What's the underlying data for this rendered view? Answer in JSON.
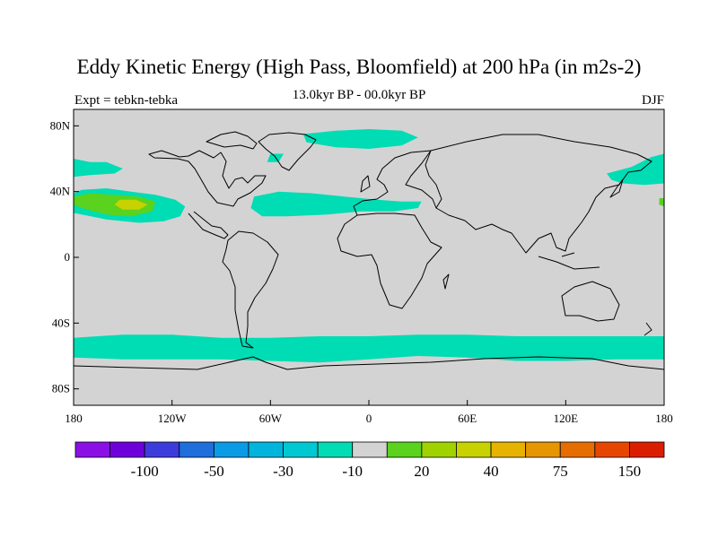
{
  "header": {
    "title": "Eddy Kinetic Energy (High Pass, Bloomfield) at 200 hPa (in m2s-2)",
    "subtitle": "13.0kyr BP - 00.0kyr BP",
    "left_label": "Expt = tebkn-tebka",
    "right_label": "DJF"
  },
  "colors": {
    "land_ocean_base": "#d3d3d3",
    "coast": "#000000",
    "level_minus10": "#00dcb4",
    "level_20": "#5ad21e",
    "level_40": "#c8d200"
  },
  "chart_data": {
    "type": "contour-map",
    "projection": "cylindrical-equidistant",
    "xlim": [
      -180,
      180
    ],
    "ylim": [
      -90,
      90
    ],
    "lat_ticks": [
      {
        "value": 80,
        "label": "80N"
      },
      {
        "value": 40,
        "label": "40N"
      },
      {
        "value": 0,
        "label": "0"
      },
      {
        "value": -40,
        "label": "40S"
      },
      {
        "value": -80,
        "label": "80S"
      }
    ],
    "lon_ticks": [
      {
        "value": -180,
        "label": "180"
      },
      {
        "value": -120,
        "label": "120W"
      },
      {
        "value": -60,
        "label": "60W"
      },
      {
        "value": 0,
        "label": "0"
      },
      {
        "value": 60,
        "label": "60E"
      },
      {
        "value": 120,
        "label": "120E"
      },
      {
        "value": 180,
        "label": "180"
      }
    ],
    "colorbar": {
      "colors": [
        "#8a10e6",
        "#6e00dc",
        "#3c3cdc",
        "#1e6edc",
        "#0a9be6",
        "#00b4dc",
        "#00c8d2",
        "#00dcb4",
        "#d3d3d3",
        "#5ad21e",
        "#a0d200",
        "#c8d200",
        "#e6b400",
        "#e69600",
        "#e66e00",
        "#e64600",
        "#dc1e00"
      ],
      "labels": [
        "-100",
        "-50",
        "-30",
        "-10",
        "20",
        "40",
        "75",
        "150"
      ],
      "label_after_box": [
        2,
        4,
        6,
        8,
        10,
        12,
        14,
        16
      ]
    },
    "regions": [
      {
        "name": "south-storm-track-band",
        "level": -10,
        "points": [
          [
            -180,
            -49
          ],
          [
            -150,
            -47
          ],
          [
            -120,
            -47
          ],
          [
            -90,
            -49
          ],
          [
            -60,
            -49
          ],
          [
            -30,
            -48
          ],
          [
            0,
            -48
          ],
          [
            30,
            -47
          ],
          [
            60,
            -47
          ],
          [
            90,
            -48
          ],
          [
            120,
            -48
          ],
          [
            150,
            -48
          ],
          [
            180,
            -48
          ],
          [
            180,
            -62
          ],
          [
            150,
            -62
          ],
          [
            120,
            -63
          ],
          [
            90,
            -63
          ],
          [
            60,
            -61
          ],
          [
            30,
            -60
          ],
          [
            0,
            -62
          ],
          [
            -30,
            -64
          ],
          [
            -60,
            -63
          ],
          [
            -90,
            -62
          ],
          [
            -120,
            -62
          ],
          [
            -150,
            -62
          ],
          [
            -180,
            -61
          ]
        ]
      },
      {
        "name": "north-atlantic-band",
        "level": -10,
        "points": [
          [
            -70,
            37
          ],
          [
            -55,
            40
          ],
          [
            -35,
            39
          ],
          [
            -15,
            37
          ],
          [
            5,
            35
          ],
          [
            20,
            34
          ],
          [
            32,
            34
          ],
          [
            30,
            30
          ],
          [
            15,
            28
          ],
          [
            -5,
            28
          ],
          [
            -25,
            26
          ],
          [
            -50,
            25
          ],
          [
            -65,
            25
          ],
          [
            -72,
            30
          ]
        ]
      },
      {
        "name": "north-pacific-west-band",
        "level": -10,
        "points": [
          [
            -180,
            60
          ],
          [
            -170,
            58
          ],
          [
            -160,
            58
          ],
          [
            -150,
            54
          ],
          [
            -155,
            51
          ],
          [
            -170,
            50
          ],
          [
            -180,
            49
          ]
        ]
      },
      {
        "name": "north-pacific-east-band",
        "level": -10,
        "points": [
          [
            145,
            51
          ],
          [
            160,
            55
          ],
          [
            172,
            61
          ],
          [
            180,
            63
          ],
          [
            180,
            45
          ],
          [
            168,
            44
          ],
          [
            155,
            45
          ],
          [
            148,
            47
          ]
        ]
      },
      {
        "name": "north-pacific-central-lobe",
        "level": -10,
        "points": [
          [
            -180,
            39
          ],
          [
            -175,
            41
          ],
          [
            -160,
            42
          ],
          [
            -145,
            40
          ],
          [
            -130,
            38
          ],
          [
            -118,
            35
          ],
          [
            -112,
            31
          ],
          [
            -115,
            25
          ],
          [
            -125,
            22
          ],
          [
            -140,
            21
          ],
          [
            -160,
            23
          ],
          [
            -175,
            26
          ],
          [
            -180,
            27
          ]
        ]
      },
      {
        "name": "north-pacific-central-inner",
        "level": 20,
        "points": [
          [
            -180,
            37
          ],
          [
            -170,
            39
          ],
          [
            -155,
            38
          ],
          [
            -140,
            37
          ],
          [
            -130,
            34
          ],
          [
            -132,
            28
          ],
          [
            -145,
            25
          ],
          [
            -160,
            26
          ],
          [
            -175,
            30
          ],
          [
            -180,
            32
          ]
        ]
      },
      {
        "name": "north-pacific-central-core",
        "level": 40,
        "points": [
          [
            -152,
            35
          ],
          [
            -142,
            35
          ],
          [
            -135,
            32
          ],
          [
            -140,
            29
          ],
          [
            -150,
            29
          ],
          [
            -155,
            32
          ]
        ]
      },
      {
        "name": "arctic-atlantic-band",
        "level": -10,
        "points": [
          [
            -40,
            75
          ],
          [
            -20,
            77
          ],
          [
            0,
            78
          ],
          [
            20,
            77
          ],
          [
            30,
            73
          ],
          [
            20,
            68
          ],
          [
            0,
            66
          ],
          [
            -20,
            67
          ],
          [
            -38,
            70
          ]
        ]
      },
      {
        "name": "labrador-patch",
        "level": -10,
        "points": [
          [
            -60,
            63
          ],
          [
            -52,
            63
          ],
          [
            -55,
            58
          ],
          [
            -62,
            58
          ]
        ]
      },
      {
        "name": "japan-edge-patch",
        "level": 20,
        "points": [
          [
            177,
            36
          ],
          [
            180,
            36
          ],
          [
            180,
            31
          ],
          [
            177,
            32
          ]
        ]
      }
    ]
  }
}
